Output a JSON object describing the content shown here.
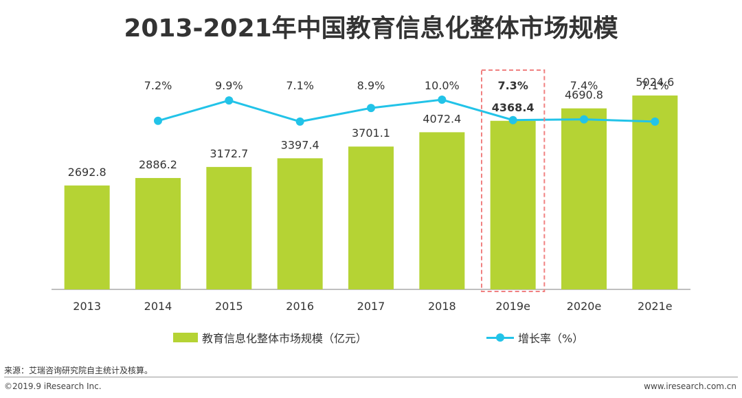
{
  "title": "2013-2021年中国教育信息化整体市场规模",
  "chart_data": {
    "type": "bar+line",
    "title": "2013-2021年中国教育信息化整体市场规模",
    "categories": [
      "2013",
      "2014",
      "2015",
      "2016",
      "2017",
      "2018",
      "2019e",
      "2020e",
      "2021e"
    ],
    "series": [
      {
        "name": "教育信息化整体市场规模（亿元）",
        "type": "bar",
        "values": [
          2692.8,
          2886.2,
          3172.7,
          3397.4,
          3701.1,
          4072.4,
          4368.4,
          4690.8,
          5024.6
        ],
        "labels": [
          "2692.8",
          "2886.2",
          "3172.7",
          "3397.4",
          "3701.1",
          "4072.4",
          "4368.4",
          "4690.8",
          "5024.6"
        ]
      },
      {
        "name": "增长率（%）",
        "type": "line",
        "values": [
          7.2,
          9.9,
          7.1,
          8.9,
          10.0,
          7.3,
          7.4,
          7.1
        ],
        "x": [
          "2014",
          "2015",
          "2016",
          "2017",
          "2018",
          "2019e",
          "2020e",
          "2021e"
        ],
        "labels": [
          "7.2%",
          "9.9%",
          "7.1%",
          "8.9%",
          "10.0%",
          "7.3%",
          "7.4%",
          "7.1%"
        ]
      }
    ],
    "highlight": "2019e",
    "ylim": [
      0,
      5700
    ],
    "grid": false,
    "legend_position": "bottom"
  },
  "colors": {
    "bar": "#b5d334",
    "line": "#22c3e8",
    "highlight_box": "#f08080",
    "axis": "#aaaaaa"
  },
  "legend": {
    "bar_label": "教育信息化整体市场规模（亿元）",
    "line_label": "增长率（%）"
  },
  "footer": {
    "source": "来源：艾瑞咨询研究院自主统计及核算。",
    "copyright": "©2019.9 iResearch Inc.",
    "website": "www.iresearch.com.cn"
  }
}
